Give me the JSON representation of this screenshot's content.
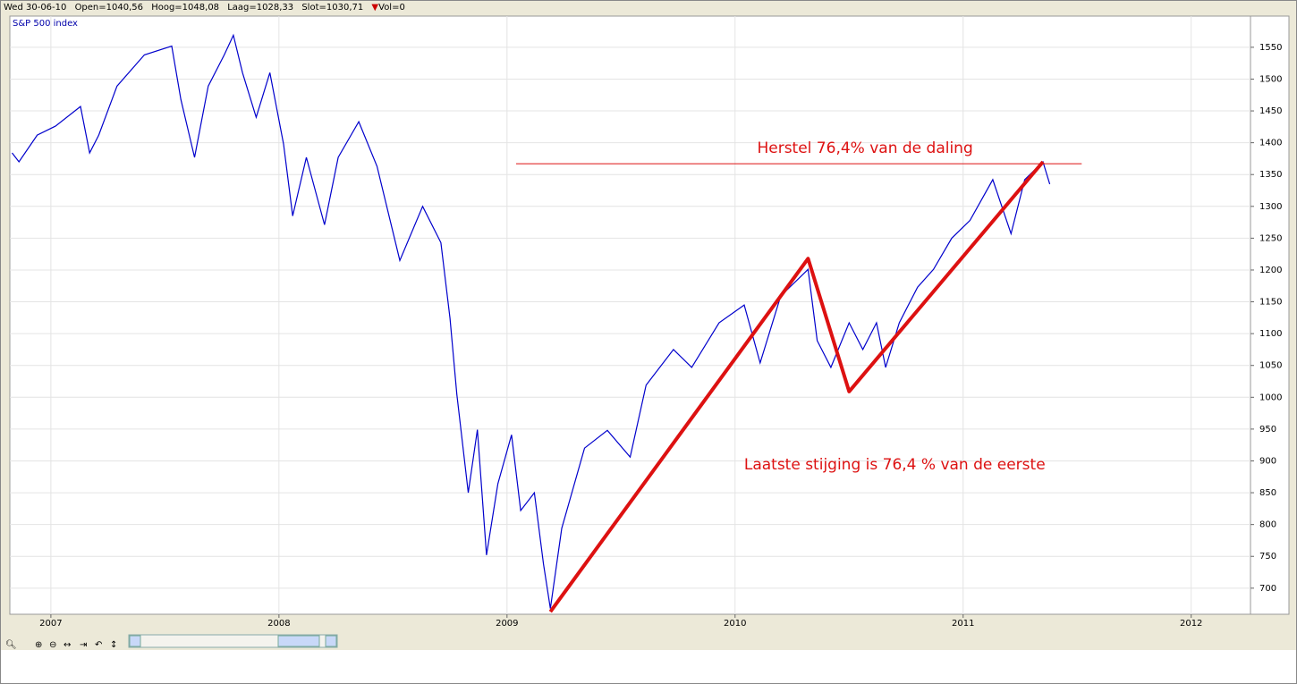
{
  "header": {
    "date": "Wed 30-06-10",
    "open": "Open=1040,56",
    "high": "Hoog=1048,08",
    "low": "Laag=1028,33",
    "close": "Slot=1030,71",
    "volume": "Vol=0"
  },
  "chart_data": {
    "type": "line",
    "title": "S&P 500 index",
    "color": "#0000cc",
    "grid": true,
    "x": [
      2006.83,
      2006.86,
      2006.94,
      2007.02,
      2007.13,
      2007.17,
      2007.21,
      2007.29,
      2007.41,
      2007.53,
      2007.57,
      2007.63,
      2007.69,
      2007.76,
      2007.8,
      2007.84,
      2007.9,
      2007.96,
      2008.02,
      2008.06,
      2008.12,
      2008.2,
      2008.26,
      2008.35,
      2008.43,
      2008.53,
      2008.63,
      2008.71,
      2008.75,
      2008.78,
      2008.83,
      2008.87,
      2008.91,
      2008.96,
      2009.02,
      2009.06,
      2009.12,
      2009.16,
      2009.19,
      2009.24,
      2009.34,
      2009.44,
      2009.54,
      2009.61,
      2009.73,
      2009.81,
      2009.93,
      2010.04,
      2010.11,
      2010.2,
      2010.32,
      2010.36,
      2010.42,
      2010.5,
      2010.56,
      2010.62,
      2010.66,
      2010.72,
      2010.8,
      2010.87,
      2010.95,
      2011.03,
      2011.13,
      2011.21,
      2011.27,
      2011.35,
      2011.38
    ],
    "values": [
      1384,
      1370,
      1412,
      1426,
      1457,
      1384,
      1412,
      1489,
      1538,
      1552,
      1468,
      1377,
      1489,
      1538,
      1569,
      1510,
      1440,
      1510,
      1398,
      1285,
      1377,
      1271,
      1377,
      1433,
      1363,
      1215,
      1300,
      1243,
      1124,
      1005,
      850,
      949,
      752,
      864,
      941,
      822,
      850,
      738,
      668,
      794,
      920,
      948,
      906,
      1019,
      1075,
      1047,
      1117,
      1145,
      1054,
      1159,
      1201,
      1089,
      1047,
      1117,
      1075,
      1117,
      1047,
      1117,
      1173,
      1201,
      1250,
      1278,
      1342,
      1257,
      1342,
      1370,
      1335
    ],
    "xlim": [
      2006.82,
      2012.26
    ],
    "xticks": [
      2007,
      2008,
      2009,
      2010,
      2011,
      2012
    ],
    "ylim": [
      659,
      1599
    ],
    "yticks": [
      700,
      750,
      800,
      850,
      900,
      950,
      1000,
      1050,
      1100,
      1150,
      1200,
      1250,
      1300,
      1350,
      1400,
      1450,
      1500,
      1550
    ],
    "annotation_lines": [
      {
        "color": "#dd1111",
        "x": [
          2009.19,
          2010.32,
          2010.5,
          2011.35
        ],
        "y": [
          663,
          1218,
          1009,
          1370
        ]
      },
      {
        "color": "#dd1111",
        "x": [
          2009.04,
          2011.52
        ],
        "y": [
          1367,
          1367
        ]
      }
    ],
    "annotations": [
      {
        "text": "Herstel 76,4% van de daling",
        "x": 2010.57,
        "y": 1391,
        "color": "#dd1111"
      },
      {
        "text": "Laatste stijging is 76,4 % van de eerste",
        "x": 2010.7,
        "y": 894,
        "color": "#dd1111"
      }
    ]
  }
}
